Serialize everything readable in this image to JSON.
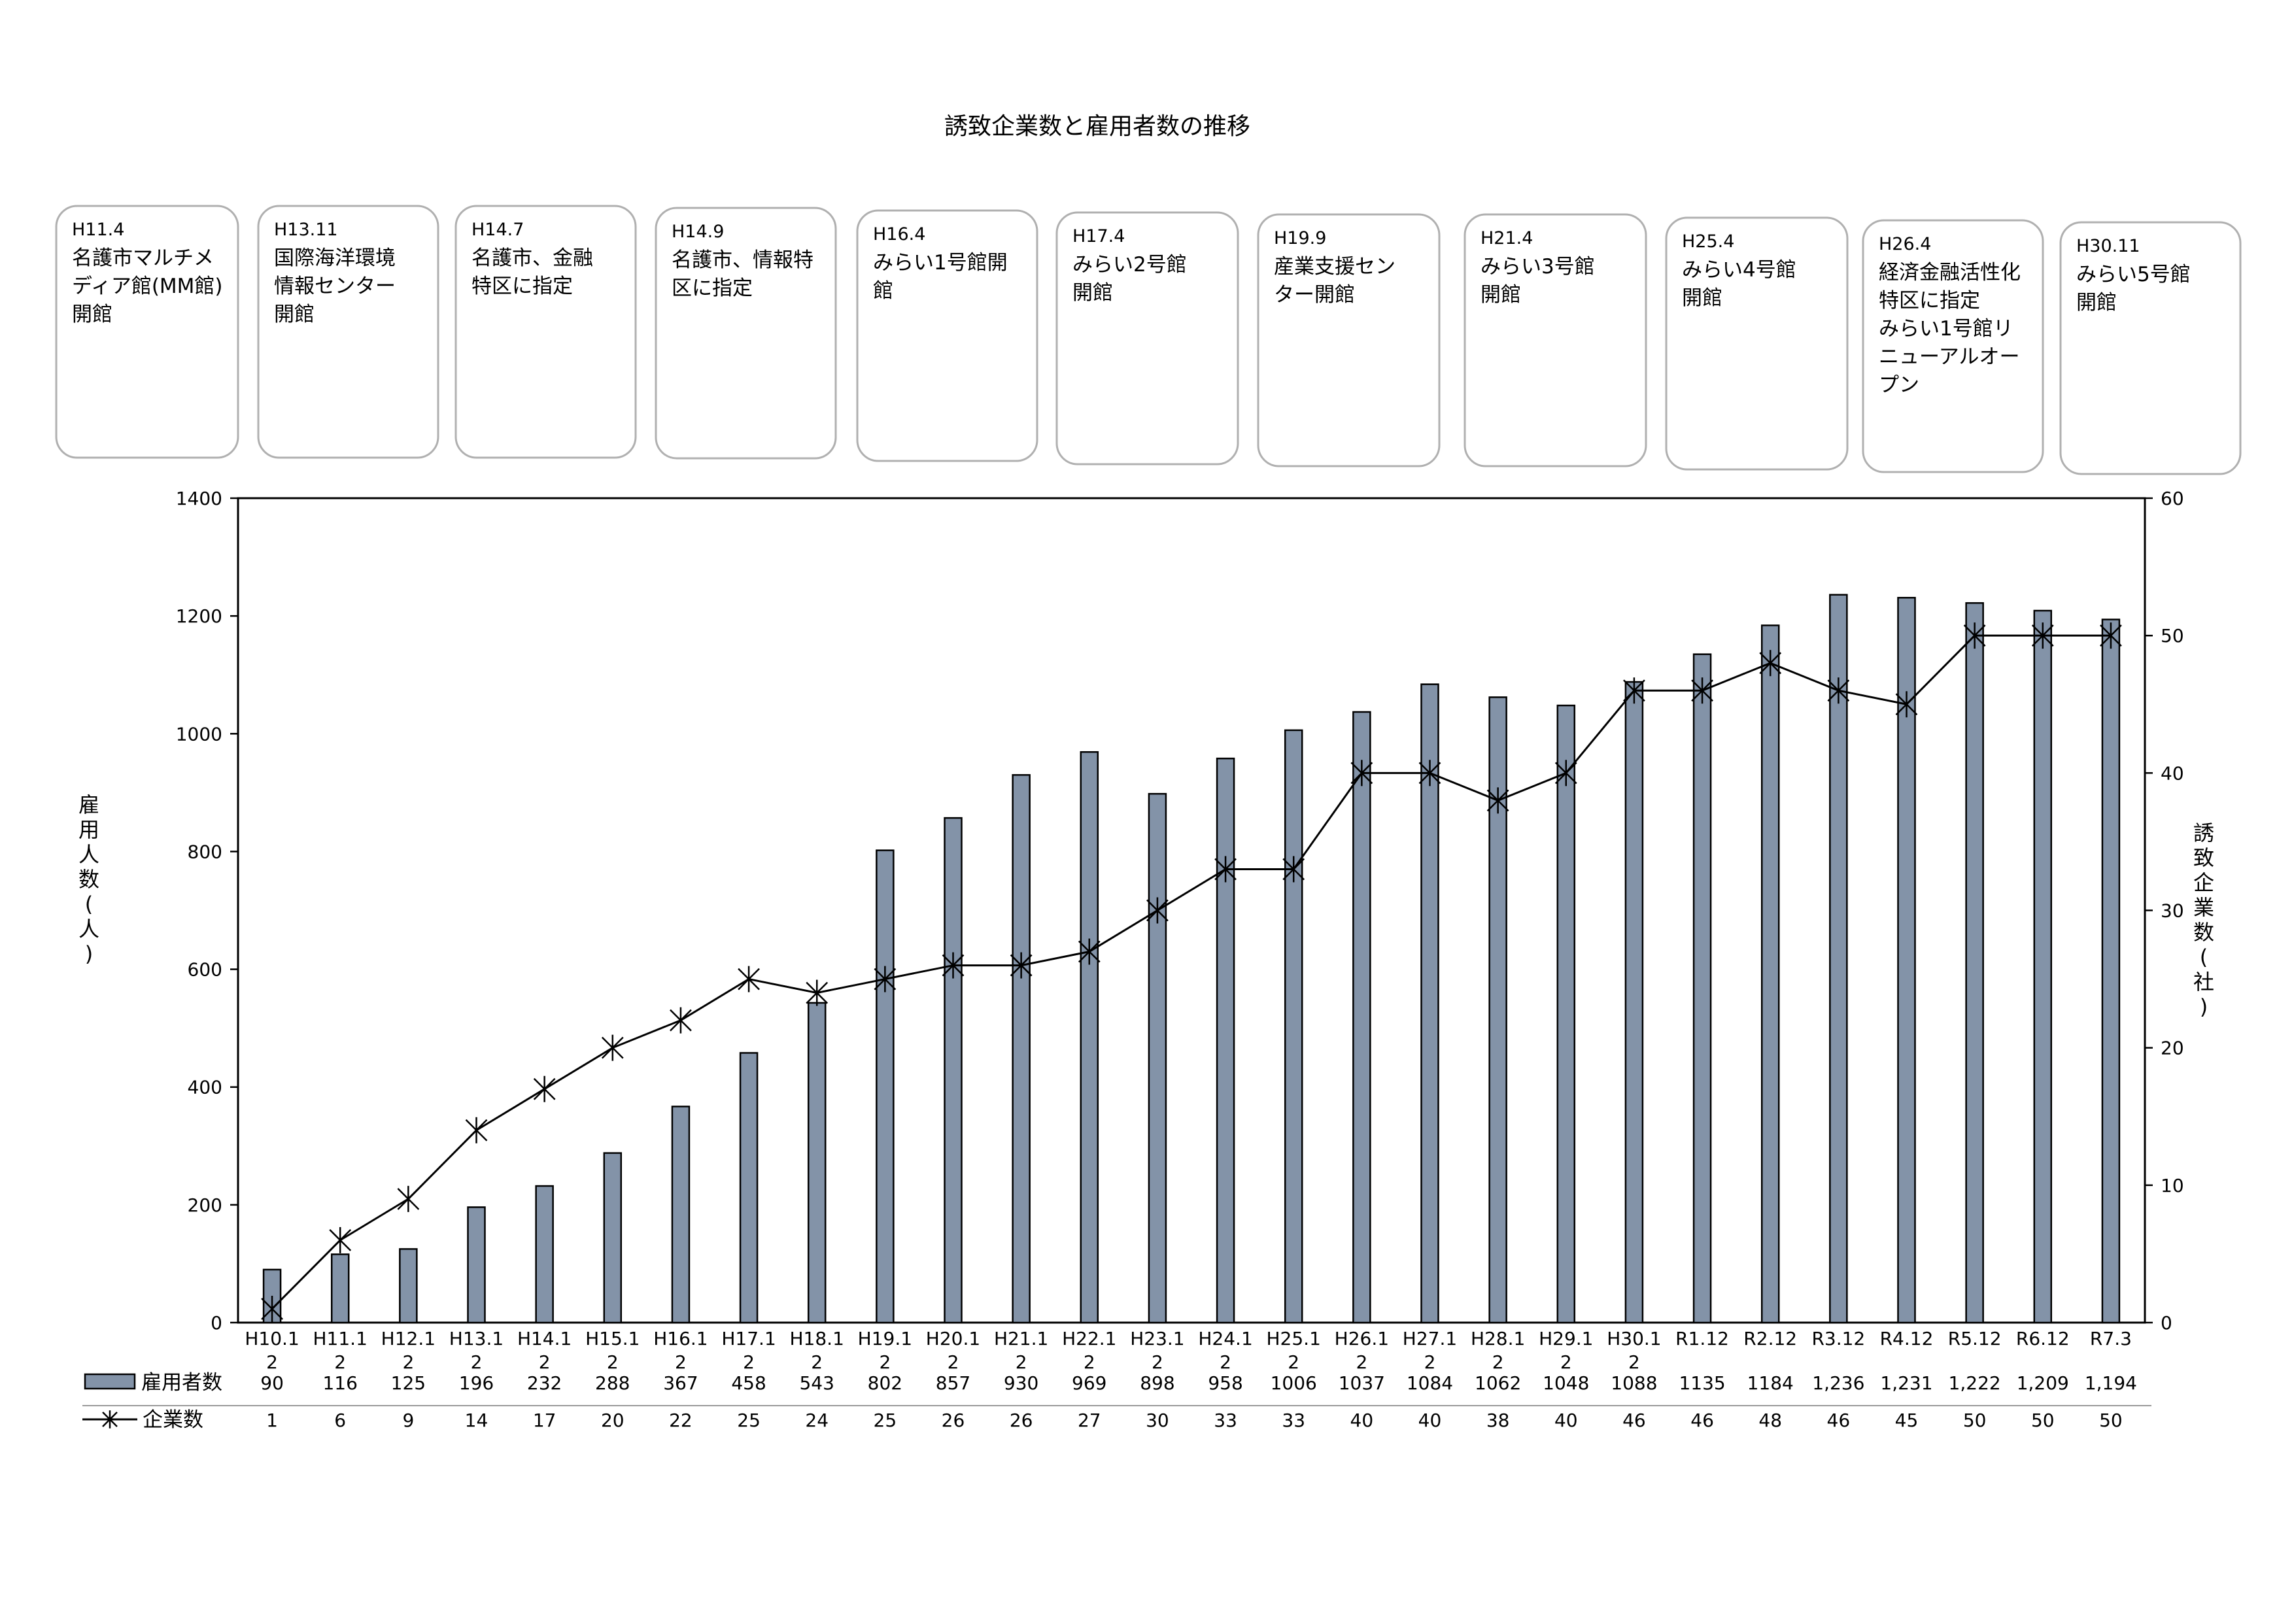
{
  "chart_data": {
    "type": "bar",
    "title": "誘致企業数と雇用者数の推移",
    "ylabel": "雇用人数(人)",
    "y2label": "誘致企業数(社)",
    "ylim": [
      0,
      1400
    ],
    "y2lim": [
      0,
      60
    ],
    "yticks": [
      0,
      200,
      400,
      600,
      800,
      1000,
      1200,
      1400
    ],
    "y2ticks": [
      0,
      10,
      20,
      30,
      40,
      50,
      60
    ],
    "grid": false,
    "categories": [
      [
        "H10.1",
        "2"
      ],
      [
        "H11.1",
        "2"
      ],
      [
        "H12.1",
        "2"
      ],
      [
        "H13.1",
        "2"
      ],
      [
        "H14.1",
        "2"
      ],
      [
        "H15.1",
        "2"
      ],
      [
        "H16.1",
        "2"
      ],
      [
        "H17.1",
        "2"
      ],
      [
        "H18.1",
        "2"
      ],
      [
        "H19.1",
        "2"
      ],
      [
        "H20.1",
        "2"
      ],
      [
        "H21.1",
        "2"
      ],
      [
        "H22.1",
        "2"
      ],
      [
        "H23.1",
        "2"
      ],
      [
        "H24.1",
        "2"
      ],
      [
        "H25.1",
        "2"
      ],
      [
        "H26.1",
        "2"
      ],
      [
        "H27.1",
        "2"
      ],
      [
        "H28.1",
        "2"
      ],
      [
        "H29.1",
        "2"
      ],
      [
        "H30.1",
        "2"
      ],
      [
        "R1.12"
      ],
      [
        "R2.12"
      ],
      [
        "R3.12"
      ],
      [
        "R4.12"
      ],
      [
        "R5.12"
      ],
      [
        "R6.12"
      ],
      [
        "R7.3"
      ]
    ],
    "series": [
      {
        "name": "雇用者数",
        "type": "bar",
        "axis": "left",
        "color": "#8393a8",
        "values": [
          90,
          116,
          125,
          196,
          232,
          288,
          367,
          458,
          543,
          802,
          857,
          930,
          969,
          898,
          958,
          1006,
          1037,
          1084,
          1062,
          1048,
          1088,
          1135,
          1184,
          1236,
          1231,
          1222,
          1209,
          1194
        ],
        "labels": [
          "90",
          "116",
          "125",
          "196",
          "232",
          "288",
          "367",
          "458",
          "543",
          "802",
          "857",
          "930",
          "969",
          "898",
          "958",
          "1006",
          "1037",
          "1084",
          "1062",
          "1048",
          "1088",
          "1135",
          "1184",
          "1,236",
          "1,231",
          "1,222",
          "1,209",
          "1,194"
        ]
      },
      {
        "name": "企業数",
        "type": "line",
        "axis": "right",
        "marker": "asterisk",
        "color": "#000000",
        "values": [
          1,
          6,
          9,
          14,
          17,
          20,
          22,
          25,
          24,
          25,
          26,
          26,
          27,
          30,
          33,
          33,
          40,
          40,
          38,
          40,
          46,
          46,
          48,
          46,
          45,
          50,
          50,
          50
        ],
        "labels": [
          "1",
          "6",
          "9",
          "14",
          "17",
          "20",
          "22",
          "25",
          "24",
          "25",
          "26",
          "26",
          "27",
          "30",
          "33",
          "33",
          "40",
          "40",
          "38",
          "40",
          "46",
          "46",
          "48",
          "46",
          "45",
          "50",
          "50",
          "50"
        ]
      }
    ],
    "annotations": [
      {
        "date": "H11.4",
        "text": [
          "名護市マルチメ",
          "ディア館(MM館)",
          "開館"
        ]
      },
      {
        "date": "H13.11",
        "text": [
          "国際海洋環境",
          "情報センター",
          "開館"
        ]
      },
      {
        "date": "H14.7",
        "text": [
          "名護市、金融",
          "特区に指定"
        ]
      },
      {
        "date": "H14.9",
        "text": [
          "名護市、情報特",
          "区に指定"
        ]
      },
      {
        "date": "H16.4",
        "text": [
          "みらい1号館開",
          "館"
        ]
      },
      {
        "date": "H17.4",
        "text": [
          "みらい2号館",
          "開館"
        ]
      },
      {
        "date": "H19.9",
        "text": [
          "産業支援セン",
          "ター開館"
        ]
      },
      {
        "date": "H21.4",
        "text": [
          "みらい3号館",
          "開館"
        ]
      },
      {
        "date": "H25.4",
        "text": [
          "みらい4号館",
          "開館"
        ]
      },
      {
        "date": "H26.4",
        "text": [
          "経済金融活性化",
          "特区に指定",
          "みらい1号館リ",
          "ニューアルオー",
          "プン"
        ]
      },
      {
        "date": "H30.11",
        "text": [
          "みらい5号館",
          "開館"
        ]
      }
    ]
  }
}
